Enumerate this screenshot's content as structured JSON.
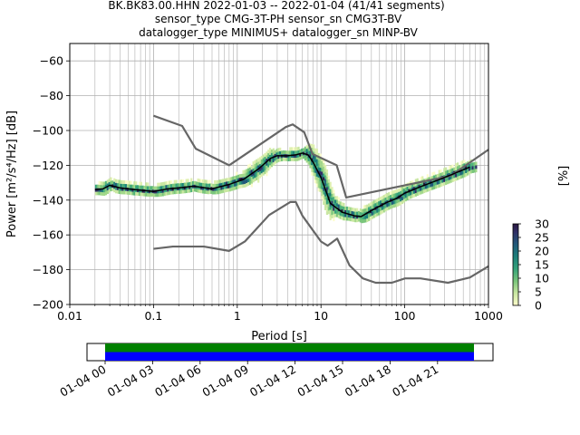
{
  "chart_data": [
    {
      "type": "heatmap",
      "title_lines": [
        "BK.BK83.00.HHN   2022-01-03 -- 2022-01-04  (41/41 segments)",
        "sensor_type CMG-3T-PH sensor_sn CMG3T-BV",
        "datalogger_type MINIMUS+ datalogger_sn MINP-BV"
      ],
      "xlabel": "Period [s]",
      "ylabel": "Power [m²/s⁴/Hz] [dB]",
      "xscale": "log",
      "xlim": [
        0.01,
        1000
      ],
      "ylim": [
        -200,
        -50
      ],
      "x_ticks": [
        0.01,
        0.1,
        1,
        10,
        100,
        1000
      ],
      "x_tick_labels": [
        "0.01",
        "0.1",
        "1",
        "10",
        "100",
        "1000"
      ],
      "y_ticks": [
        -200,
        -180,
        -160,
        -140,
        -120,
        -100,
        -80,
        -60
      ],
      "y_tick_labels": [
        "−200",
        "−180",
        "−160",
        "−140",
        "−120",
        "−100",
        "−80",
        "−60"
      ],
      "grid": true,
      "colorbar": {
        "label": "[%]",
        "range": [
          0,
          30
        ],
        "ticks": [
          0,
          5,
          10,
          15,
          20,
          25,
          30
        ],
        "tick_labels": [
          "0",
          "5",
          "10",
          "15",
          "20",
          "25",
          "30"
        ]
      },
      "series": [
        {
          "role": "new-high-noise-model",
          "color": "#666666",
          "x": [
            0.1,
            0.22,
            0.32,
            0.8,
            3.8,
            4.6,
            6.3,
            7.9,
            15.4,
            20,
            354.8,
            1000
          ],
          "y": [
            -91.5,
            -97.4,
            -110.5,
            -120,
            -98,
            -96.5,
            -101,
            -113.5,
            -120,
            -138.5,
            -126,
            -111
          ]
        },
        {
          "role": "new-low-noise-model",
          "color": "#666666",
          "x": [
            0.1,
            0.17,
            0.4,
            0.8,
            1.24,
            2.4,
            4.3,
            5,
            6,
            10,
            12,
            15.6,
            21.9,
            31.6,
            45,
            70,
            101,
            154,
            328,
            600,
            1000
          ],
          "y": [
            -168,
            -166.7,
            -166.7,
            -169.2,
            -163.7,
            -148.6,
            -141.1,
            -141.1,
            -149,
            -163.8,
            -166.2,
            -162.1,
            -177.5,
            -185,
            -187.5,
            -187.5,
            -185,
            -185,
            -187.5,
            -184.5,
            -178
          ]
        },
        {
          "role": "median-psd",
          "color": "#000000",
          "x": [
            0.02,
            0.025,
            0.03,
            0.04,
            0.06,
            0.1,
            0.15,
            0.2,
            0.3,
            0.5,
            0.8,
            1.2,
            1.8,
            2.5,
            3,
            4,
            5,
            6,
            7,
            8,
            10,
            13,
            18,
            25,
            30,
            40,
            60,
            80,
            100,
            150,
            250,
            400,
            600
          ],
          "y": [
            -134,
            -133.5,
            -131.5,
            -133,
            -134,
            -135,
            -133.5,
            -133,
            -132,
            -133.5,
            -131,
            -128,
            -122,
            -116,
            -114.5,
            -114.5,
            -114,
            -113,
            -114,
            -118,
            -127,
            -142,
            -147,
            -149,
            -149.5,
            -146,
            -141.5,
            -139,
            -136,
            -132.5,
            -128.5,
            -124.5,
            -121
          ]
        }
      ]
    },
    {
      "type": "bar",
      "role": "data-availability",
      "x_tick_labels": [
        "01-04 00",
        "01-04 03",
        "01-04 06",
        "01-04 09",
        "01-04 12",
        "01-04 15",
        "01-04 18",
        "01-04 21"
      ],
      "bars": [
        {
          "color": "#008000",
          "start_hour": 0,
          "end_hour": 23.3
        },
        {
          "color": "#0000ff",
          "start_hour": 0,
          "end_hour": 23.3
        }
      ]
    }
  ]
}
